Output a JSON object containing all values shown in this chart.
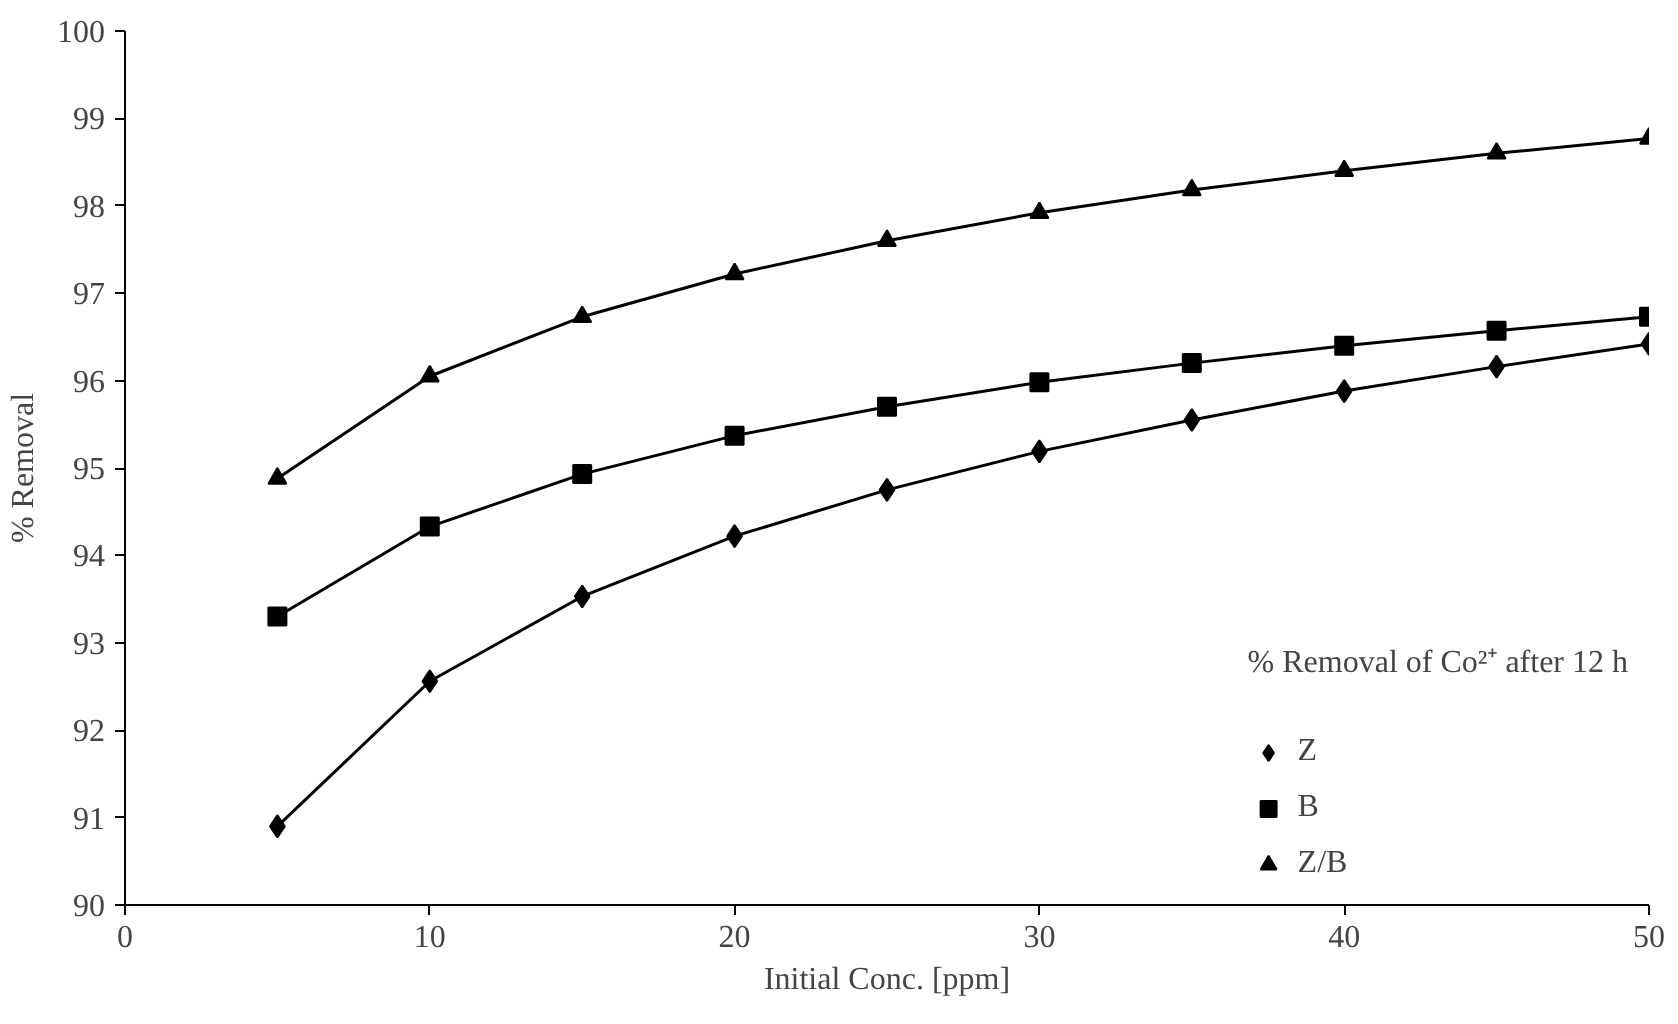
{
  "chart_data": {
    "type": "line",
    "xlabel": "Initial Conc. [ppm]",
    "ylabel": "% Removal",
    "legend_title": "% Removal of Co²⁺ after 12 h",
    "legend": "bottom right",
    "grid": false,
    "line_style": "solid",
    "x": [
      5,
      10,
      15,
      20,
      25,
      30,
      35,
      40,
      45,
      50
    ],
    "xlim": [
      0,
      50
    ],
    "xticks": [
      0,
      10,
      20,
      30,
      40,
      50
    ],
    "ylim": [
      90,
      100
    ],
    "yticks": [
      90,
      91,
      92,
      93,
      94,
      95,
      96,
      97,
      98,
      99,
      100
    ],
    "series": [
      {
        "name": "Z",
        "color": "#000000",
        "marker": "diamond",
        "values": [
          90.9,
          92.56,
          93.53,
          94.22,
          94.75,
          95.19,
          95.55,
          95.88,
          96.16,
          96.42
        ]
      },
      {
        "name": "B",
        "color": "#000000",
        "marker": "square",
        "values": [
          93.3,
          94.33,
          94.93,
          95.37,
          95.7,
          95.98,
          96.2,
          96.4,
          96.57,
          96.73
        ]
      },
      {
        "name": "Z/B",
        "color": "#000000",
        "marker": "triangle",
        "values": [
          94.88,
          96.05,
          96.73,
          97.22,
          97.6,
          97.92,
          98.18,
          98.4,
          98.6,
          98.77
        ]
      }
    ]
  }
}
